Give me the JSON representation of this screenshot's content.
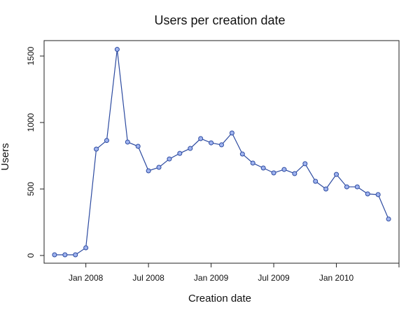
{
  "chart_data": {
    "type": "line",
    "title": "Users per creation date",
    "x_label": "Creation date",
    "y_label": "Users",
    "x": [
      "2007-10",
      "2007-11",
      "2007-12",
      "2008-01",
      "2008-02",
      "2008-03",
      "2008-04",
      "2008-05",
      "2008-06",
      "2008-07",
      "2008-08",
      "2008-09",
      "2008-10",
      "2008-11",
      "2008-12",
      "2009-01",
      "2009-02",
      "2009-03",
      "2009-04",
      "2009-05",
      "2009-06",
      "2009-07",
      "2009-08",
      "2009-09",
      "2009-10",
      "2009-11",
      "2009-12",
      "2010-01",
      "2010-02",
      "2010-03",
      "2010-04",
      "2010-05",
      "2010-06"
    ],
    "series": [
      {
        "name": "Users",
        "color": "#2c4aa0",
        "marker_fill": "#9fb3ef",
        "values": [
          5,
          5,
          5,
          58,
          800,
          865,
          1550,
          853,
          821,
          637,
          663,
          726,
          768,
          805,
          879,
          847,
          832,
          921,
          763,
          695,
          658,
          621,
          647,
          616,
          690,
          558,
          500,
          610,
          516,
          516,
          463,
          458,
          274
        ]
      }
    ],
    "xlim": [
      "2007-09",
      "2010-07"
    ],
    "xticks": [
      {
        "value": "2008-01",
        "label": "Jan 2008"
      },
      {
        "value": "2008-07",
        "label": "Jul 2008"
      },
      {
        "value": "2009-01",
        "label": "Jan 2009"
      },
      {
        "value": "2009-07",
        "label": "Jul 2009"
      },
      {
        "value": "2010-01",
        "label": "Jan 2010"
      },
      {
        "value": "2010-07",
        "label": null
      }
    ],
    "ylim": [
      -58,
      1616
    ],
    "yticks": [
      0,
      500,
      1000,
      1500
    ],
    "grid": false
  }
}
